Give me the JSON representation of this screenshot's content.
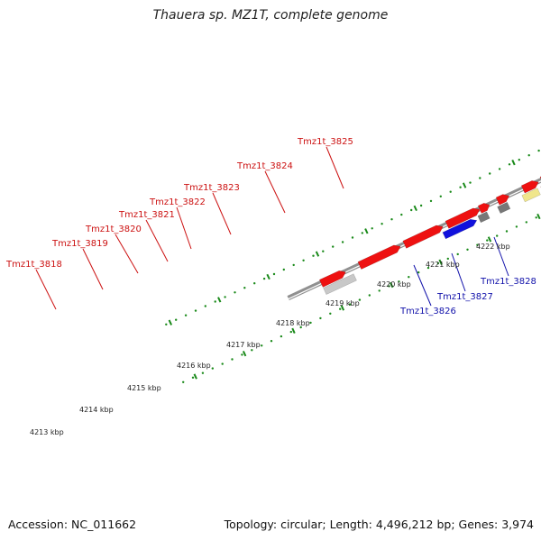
{
  "title": "Thauera sp. MZ1T, complete genome",
  "footer": {
    "accession": "Accession: NC_011662",
    "topology": "Topology: circular; Length: 4,496,212 bp; Genes: 3,974"
  },
  "colors": {
    "cds": "#ee1111",
    "rna": "#1111dd",
    "gray": "#777777",
    "lightgray": "#c8c8c8",
    "pink": "#f28a8a",
    "yellow": "#f0e68c",
    "steelblue": "#4682b4",
    "tick": "#1a8a1a",
    "backbone": "#909090",
    "label_red": "#cc1111",
    "label_blue": "#1111aa"
  },
  "ticks": [
    {
      "label": "4213 kbp"
    },
    {
      "label": "4214 kbp"
    },
    {
      "label": "4215 kbp"
    },
    {
      "label": "4216 kbp"
    },
    {
      "label": "4217 kbp"
    },
    {
      "label": "4218 kbp"
    },
    {
      "label": "4219 kbp"
    },
    {
      "label": "4220 kbp"
    },
    {
      "label": "4221 kbp"
    },
    {
      "label": "4222 kbp"
    }
  ],
  "gene_labels": [
    {
      "text": "Tmz1t_3818",
      "color": "red"
    },
    {
      "text": "Tmz1t_3819",
      "color": "red"
    },
    {
      "text": "Tmz1t_3820",
      "color": "red"
    },
    {
      "text": "Tmz1t_3821",
      "color": "red"
    },
    {
      "text": "Tmz1t_3822",
      "color": "red"
    },
    {
      "text": "Tmz1t_3823",
      "color": "red"
    },
    {
      "text": "Tmz1t_3824",
      "color": "red"
    },
    {
      "text": "Tmz1t_3825",
      "color": "red"
    },
    {
      "text": "Tmz1t_3826",
      "color": "blue"
    },
    {
      "text": "Tmz1t_3827",
      "color": "blue"
    },
    {
      "text": "Tmz1t_3828",
      "color": "blue"
    }
  ]
}
